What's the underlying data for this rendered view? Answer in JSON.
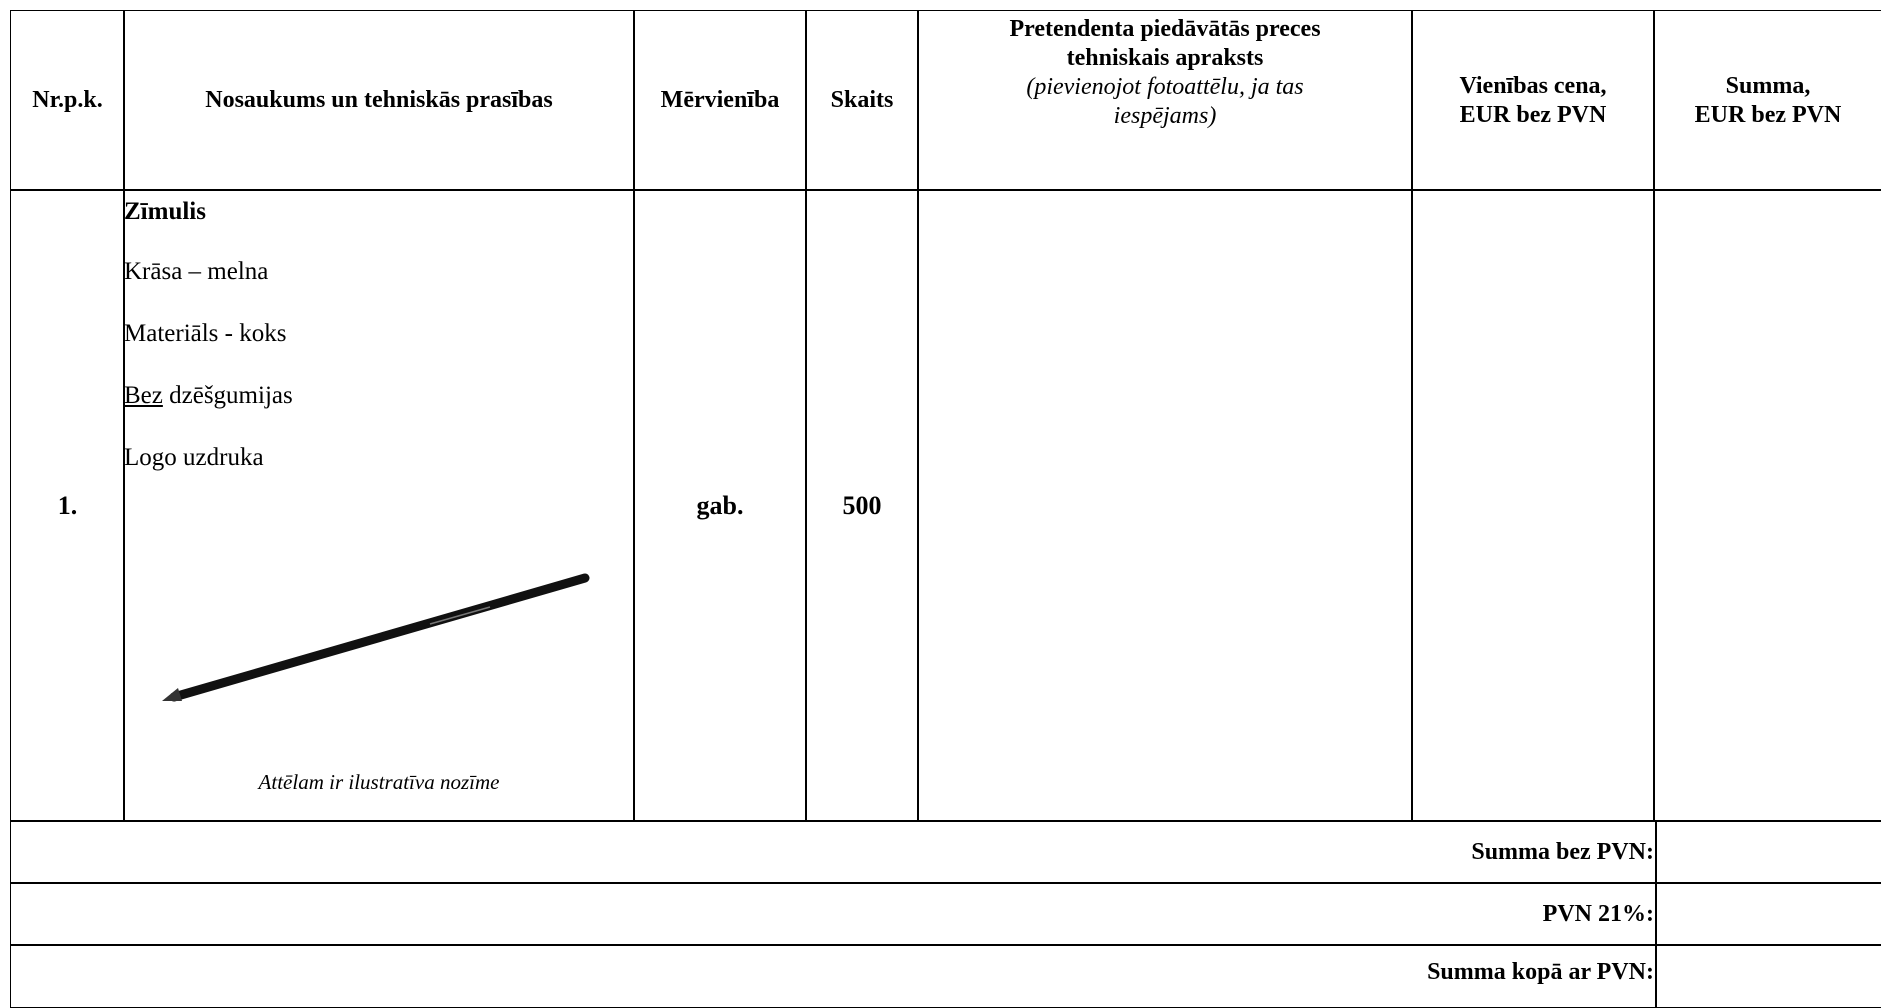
{
  "table": {
    "headers": [
      {
        "lines": [
          "Nr.p.k."
        ]
      },
      {
        "lines": [
          "Nosaukums un tehniskās prasības"
        ]
      },
      {
        "lines": [
          "Mērvienība"
        ]
      },
      {
        "lines": [
          "Skaits"
        ]
      },
      {
        "lines": [
          "Pretendenta piedāvātās preces",
          "tehniskais apraksts"
        ],
        "note": "(pievienojot fotoattēlu, ja tas iespējams)"
      },
      {
        "lines": [
          "Vienības cena,",
          "EUR bez PVN"
        ]
      },
      {
        "lines": [
          "Summa,",
          "EUR bez PVN"
        ]
      }
    ],
    "rows": [
      {
        "number": "1.",
        "name": "Zīmulis",
        "specs": [
          "Krāsa – melna",
          "Materiāls - koks"
        ],
        "spec_underlined": {
          "underlined": "Bez",
          "rest": " dzēšgumijas"
        },
        "spec_last": "Logo uzdruka",
        "image_caption": "Attēlam ir ilustratīva nozīme",
        "unit": "gab.",
        "quantity": "500"
      }
    ],
    "totals": [
      "Summa bez PVN:",
      "PVN 21%:",
      "Summa kopā ar PVN:"
    ]
  }
}
